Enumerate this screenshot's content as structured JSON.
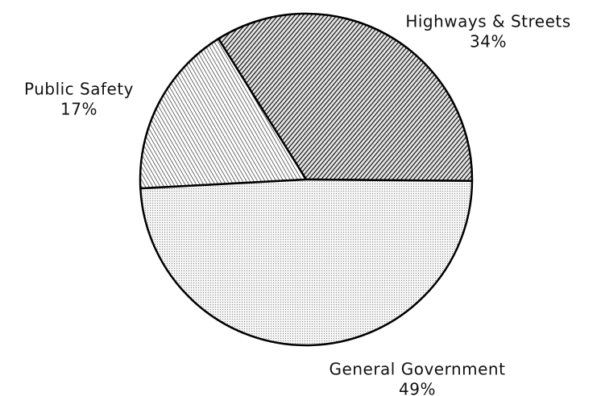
{
  "chart_data": {
    "type": "pie",
    "categories": [
      "Highways & Streets",
      "Public Safety",
      "General Government"
    ],
    "values": [
      34,
      17,
      49
    ],
    "value_labels": [
      "34%",
      "17%",
      "49%"
    ]
  }
}
